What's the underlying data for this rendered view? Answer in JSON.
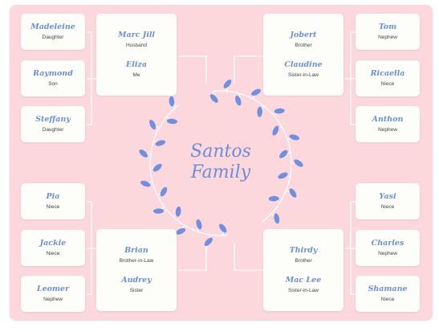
{
  "title": {
    "line1": "Santos",
    "line2": "Family"
  },
  "couples": {
    "top_left": [
      {
        "name": "Marc Jill",
        "role": "Husband"
      },
      {
        "name": "Eliza",
        "role": "Me"
      }
    ],
    "top_right": [
      {
        "name": "Jobert",
        "role": "Brother"
      },
      {
        "name": "Claudine",
        "role": "Sister-in-Law"
      }
    ],
    "bottom_left": [
      {
        "name": "Brian",
        "role": "Brother-in-Law"
      },
      {
        "name": "Audrey",
        "role": "Sister"
      }
    ],
    "bottom_right": [
      {
        "name": "Thirdy",
        "role": "Brother"
      },
      {
        "name": "Mac Lee",
        "role": "Sister-in-Law"
      }
    ]
  },
  "children": {
    "top_left": [
      {
        "name": "Madeleine",
        "role": "Daughter"
      },
      {
        "name": "Raymond",
        "role": "Son"
      },
      {
        "name": "Steffany",
        "role": "Daughter"
      }
    ],
    "top_right": [
      {
        "name": "Tom",
        "role": "Nephew"
      },
      {
        "name": "Ricaella",
        "role": "Niece"
      },
      {
        "name": "Anthon",
        "role": "Nephew"
      }
    ],
    "bottom_left": [
      {
        "name": "Pia",
        "role": "Niece"
      },
      {
        "name": "Jackie",
        "role": "Niece"
      },
      {
        "name": "Leomer",
        "role": "Nephew"
      }
    ],
    "bottom_right": [
      {
        "name": "Yasi",
        "role": "Niece"
      },
      {
        "name": "Charles",
        "role": "Nephew"
      },
      {
        "name": "Shamane",
        "role": "Niece"
      }
    ]
  },
  "colors": {
    "background": "#fcd7dc",
    "card": "#fdfdf9",
    "accent": "#6b8fd6",
    "leaf": "#6f8fe0",
    "vine": "#ffffff"
  },
  "decoration": "leaf-wreath"
}
